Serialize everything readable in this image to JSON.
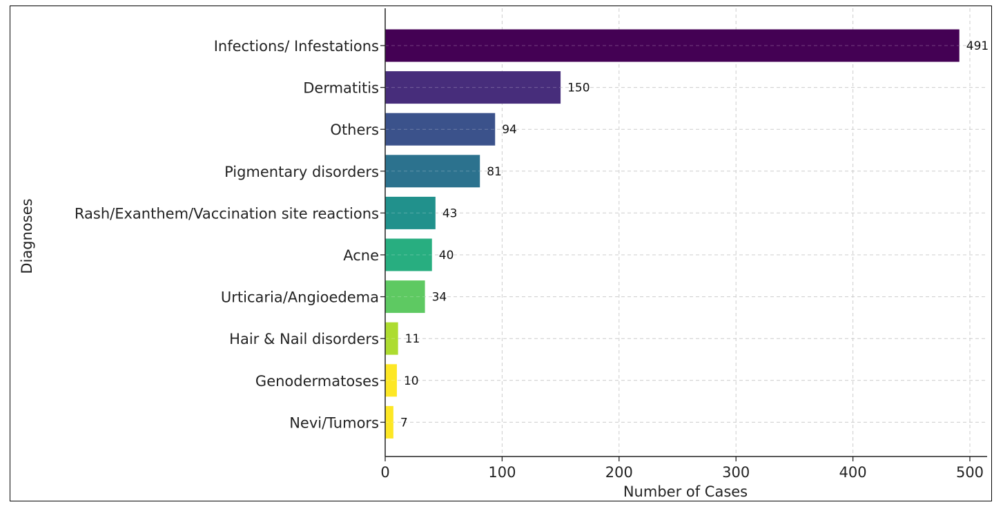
{
  "chart_data": {
    "type": "bar",
    "orientation": "horizontal",
    "title": "",
    "xlabel": "Number of Cases",
    "ylabel": "Diagnoses",
    "xlim": [
      0,
      500
    ],
    "xticks": [
      0,
      100,
      200,
      300,
      400,
      500
    ],
    "grid": true,
    "categories": [
      "Infections/ Infestations",
      "Dermatitis",
      "Others",
      "Pigmentary disorders",
      "Rash/Exanthem/Vaccination site reactions",
      "Acne",
      "Urticaria/Angioedema",
      "Hair & Nail disorders",
      "Genodermatoses",
      "Nevi/Tumors"
    ],
    "values": [
      491,
      150,
      94,
      81,
      43,
      40,
      34,
      11,
      10,
      7
    ],
    "colors": [
      "#440154",
      "#472d7b",
      "#3b528b",
      "#2c728e",
      "#21918c",
      "#28ae80",
      "#5ec962",
      "#addc30",
      "#fde725",
      "#fde725"
    ]
  }
}
